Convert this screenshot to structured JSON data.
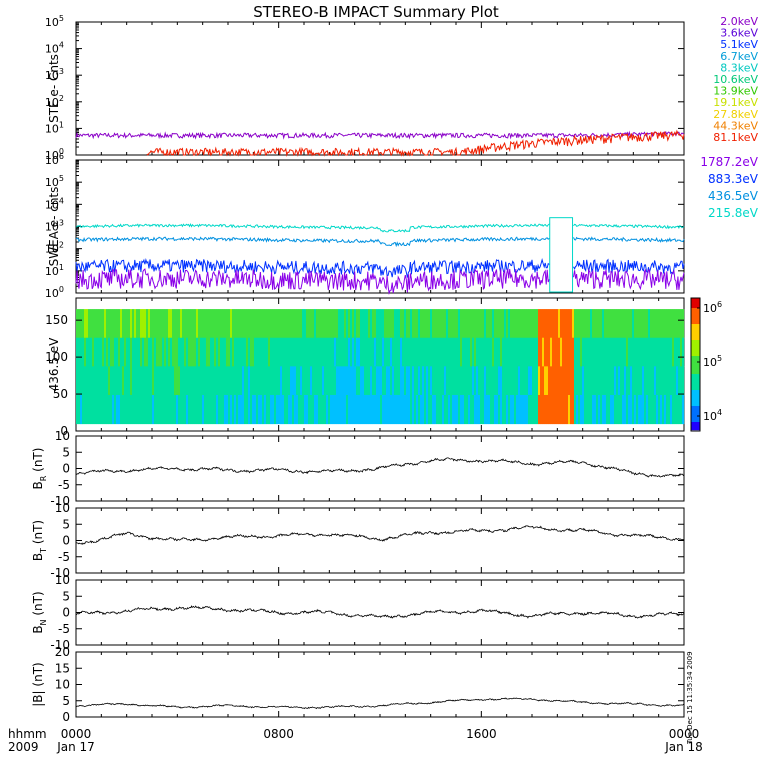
{
  "title": "STEREO-B IMPACT Summary Plot",
  "timestamp": "Tue Dec 15 11:35:34 2009",
  "ste_legend": [
    {
      "label": "2.0keV",
      "color": "#8a00c8"
    },
    {
      "label": "3.6keV",
      "color": "#5a00d8"
    },
    {
      "label": "5.1keV",
      "color": "#0030ff"
    },
    {
      "label": "6.7keV",
      "color": "#009cd8"
    },
    {
      "label": "8.3keV",
      "color": "#00c8c0"
    },
    {
      "label": "10.6keV",
      "color": "#00c878"
    },
    {
      "label": "13.9keV",
      "color": "#30c800"
    },
    {
      "label": "19.1keV",
      "color": "#c8e000"
    },
    {
      "label": "27.8keV",
      "color": "#f0d000"
    },
    {
      "label": "44.3keV",
      "color": "#f08000"
    },
    {
      "label": "81.1keV",
      "color": "#f02000"
    }
  ],
  "swea_legend": [
    {
      "label": "1787.2eV",
      "color": "#8a00e8"
    },
    {
      "label": "883.3eV",
      "color": "#0030ff"
    },
    {
      "label": "436.5eV",
      "color": "#0090e0"
    },
    {
      "label": "215.8eV",
      "color": "#00d8c8"
    }
  ],
  "colorbar_labels": [
    "10^6",
    "10^5",
    "10^4"
  ],
  "x_axis": {
    "corner_top": "hhmm",
    "corner_bottom": "2009",
    "ticks": [
      {
        "top": "0000",
        "bottom": "Jan 17",
        "t": 0
      },
      {
        "top": "0800",
        "bottom": "",
        "t": 0.3333
      },
      {
        "top": "1600",
        "bottom": "",
        "t": 0.6667
      },
      {
        "top": "0000",
        "bottom": "Jan 18",
        "t": 1
      }
    ]
  },
  "chart_data": [
    {
      "type": "line",
      "ylabel": "STE e- Cnts",
      "yscale": "log",
      "ylim": [
        1,
        100000
      ],
      "series": [
        {
          "name": "2.0keV",
          "color": "#8a00c8",
          "approx_level": 5.5
        },
        {
          "name": "81.1keV",
          "color": "#f02000",
          "approx_level": "rising from 1 to 5 near end of day"
        }
      ]
    },
    {
      "type": "line",
      "ylabel": "SWEA e- cnts",
      "yscale": "log",
      "ylim": [
        1,
        1000000
      ],
      "series": [
        {
          "name": "215.8eV",
          "color": "#00d8c8",
          "approx_level": 1000
        },
        {
          "name": "436.5eV",
          "color": "#0090e0",
          "approx_level": 250
        },
        {
          "name": "883.3eV",
          "color": "#0030ff",
          "approx_level": 15
        },
        {
          "name": "1787.2eV",
          "color": "#8a00e8",
          "approx_level": 4
        }
      ],
      "data_gap_hours": [
        18.7,
        19.6
      ]
    },
    {
      "type": "heatmap",
      "ylabel": "436.5 eV",
      "ylim": [
        0,
        180
      ],
      "yticks": [
        0,
        50,
        100,
        150
      ],
      "color_scale": "log",
      "clim": [
        6000,
        1000000
      ]
    },
    {
      "type": "line",
      "ylabel": "BR (nT)",
      "ylim": [
        -10,
        10
      ],
      "yticks": [
        -10,
        -5,
        0,
        5,
        10
      ],
      "x_hours": [
        0,
        2,
        4,
        6,
        8,
        10,
        12,
        14,
        16,
        18,
        20,
        22,
        24
      ],
      "y": [
        -1.5,
        -0.5,
        0,
        -0.5,
        -0.5,
        -1,
        0,
        2.5,
        2.5,
        1.5,
        2,
        -1.5,
        -2.5
      ]
    },
    {
      "type": "line",
      "ylabel": "BT (nT)",
      "ylim": [
        -10,
        10
      ],
      "yticks": [
        -10,
        -5,
        0,
        5,
        10
      ],
      "x_hours": [
        0,
        2,
        4,
        6,
        8,
        10,
        12,
        14,
        16,
        18,
        20,
        22,
        24
      ],
      "y": [
        -1,
        2,
        0,
        1,
        1.5,
        2,
        0.5,
        2.5,
        3,
        4,
        3,
        1.5,
        0.5
      ]
    },
    {
      "type": "line",
      "ylabel": "BN (nT)",
      "ylim": [
        -10,
        10
      ],
      "yticks": [
        -10,
        -5,
        0,
        5,
        10
      ],
      "x_hours": [
        0,
        2,
        4,
        6,
        8,
        10,
        12,
        14,
        16,
        18,
        20,
        22,
        24
      ],
      "y": [
        -0.5,
        0.5,
        1.5,
        1,
        0,
        0,
        -1.5,
        0,
        0.5,
        -1,
        0,
        -1,
        -0.5
      ]
    },
    {
      "type": "line",
      "ylabel": "|B| (nT)",
      "ylim": [
        0,
        20
      ],
      "yticks": [
        0,
        5,
        10,
        15,
        20
      ],
      "x_hours": [
        0,
        2,
        4,
        6,
        8,
        10,
        12,
        14,
        16,
        18,
        20,
        22,
        24
      ],
      "y": [
        3.5,
        4,
        3,
        3.5,
        3,
        3,
        3.5,
        4.5,
        5.5,
        5.5,
        4.5,
        4,
        3.5
      ]
    }
  ]
}
